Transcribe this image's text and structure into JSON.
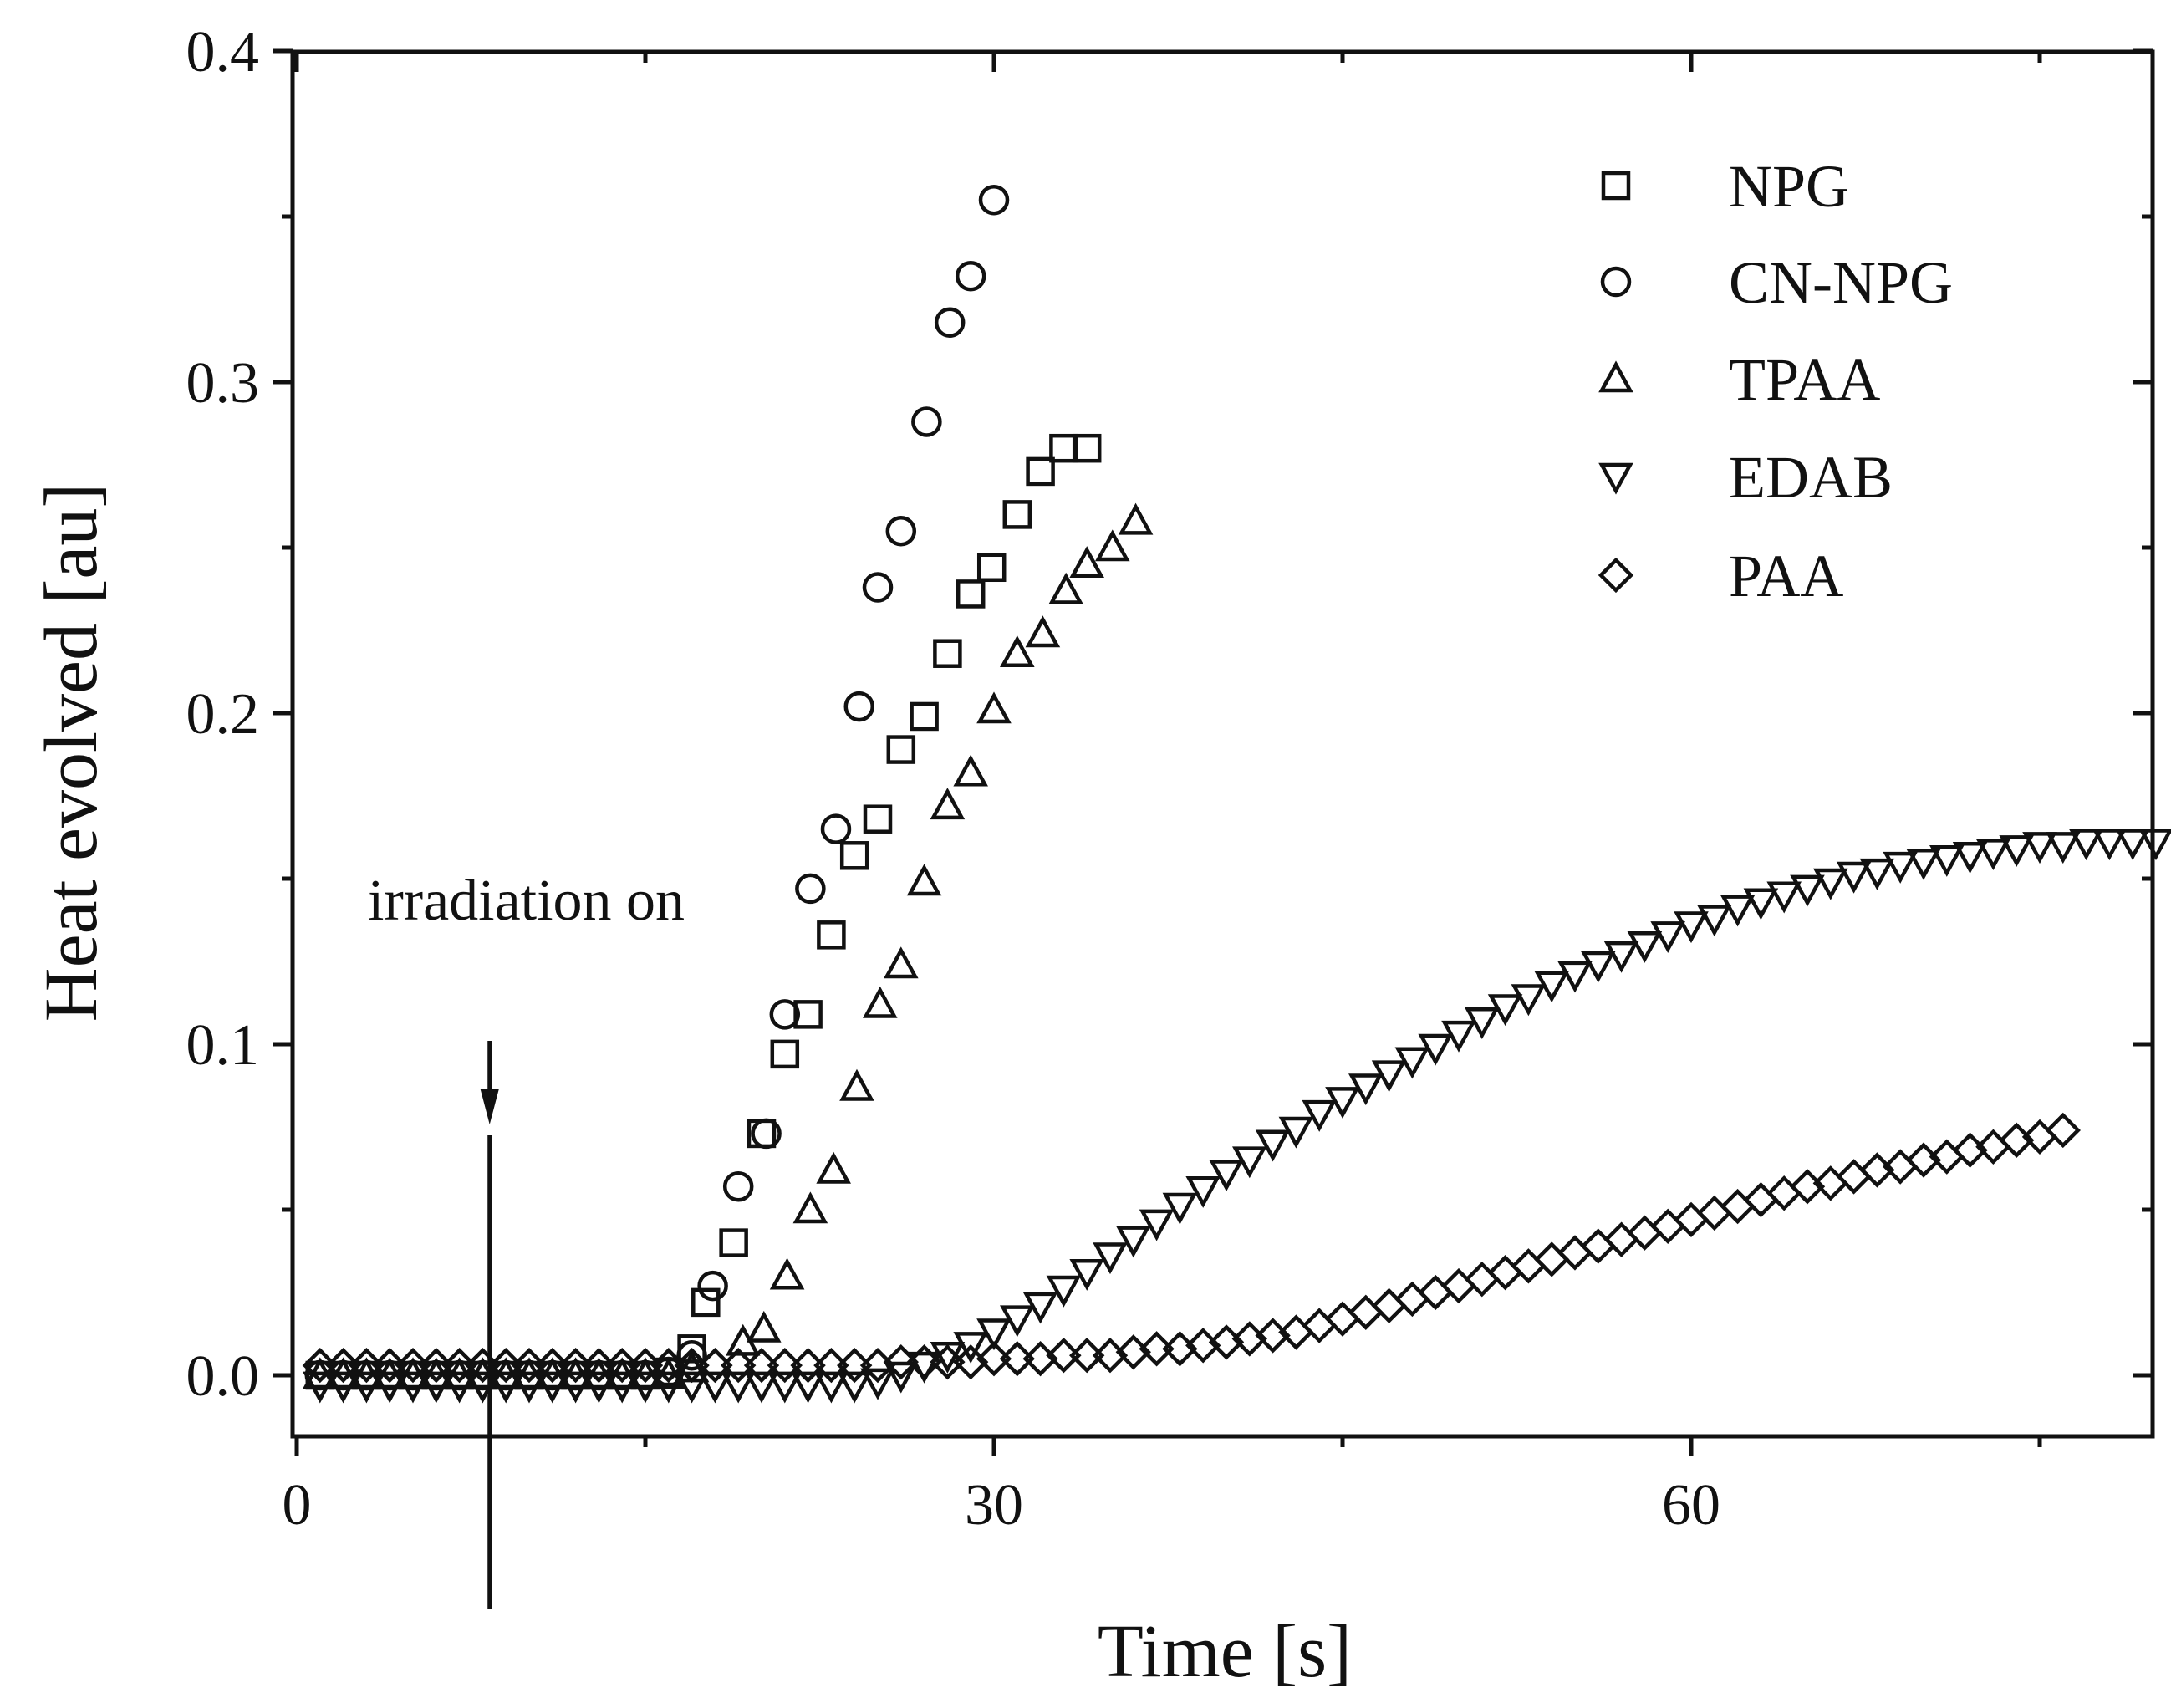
{
  "chart_data": {
    "type": "scatter",
    "title": "",
    "xlabel": "Time [s]",
    "ylabel": "Heat evolved [au]",
    "xlim": [
      0,
      80
    ],
    "ylim": [
      -0.018,
      0.4
    ],
    "xticks": [
      0,
      30,
      60
    ],
    "xtick_labels": [
      "0",
      "30",
      "60"
    ],
    "yticks": [
      0.0,
      0.1,
      0.2,
      0.3,
      0.4
    ],
    "ytick_labels": [
      "0.0",
      "0.1",
      "0.2",
      "0.3",
      "0.4"
    ],
    "grid": false,
    "legend_position": "top-right",
    "annotation": {
      "text": "irradiation on",
      "x": 8.3
    },
    "series": [
      {
        "name": "NPG",
        "marker": "square",
        "x": [
          1,
          2,
          3,
          4,
          5,
          6,
          7,
          8,
          9,
          10,
          11,
          12,
          13,
          14,
          15,
          16,
          17,
          17.6,
          18.8,
          20,
          21,
          22,
          23,
          24,
          25,
          26,
          27,
          28,
          29,
          29.9,
          31,
          32,
          33,
          34
        ],
        "y": [
          0,
          0,
          0,
          0,
          0,
          0,
          0,
          0,
          0,
          0,
          0,
          0,
          0,
          0,
          0,
          0.001,
          0.008,
          0.022,
          0.04,
          0.073,
          0.097,
          0.109,
          0.133,
          0.157,
          0.168,
          0.189,
          0.199,
          0.218,
          0.236,
          0.244,
          0.26,
          0.273,
          0.28,
          0.28
        ]
      },
      {
        "name": "CN-NPG",
        "marker": "circle",
        "x": [
          1,
          2,
          3,
          4,
          5,
          6,
          7,
          8,
          9,
          10,
          11,
          12,
          13,
          14,
          15,
          16,
          17,
          17.9,
          19.0,
          20.2,
          21.0,
          22.1,
          23.2,
          24.2,
          25.0,
          26.0,
          27.1,
          28.1,
          29.0,
          30.0
        ],
        "y": [
          0,
          0,
          0,
          0,
          0,
          0,
          0,
          0,
          0,
          0,
          0,
          0,
          0,
          0,
          0,
          0.001,
          0.006,
          0.027,
          0.057,
          0.073,
          0.109,
          0.147,
          0.165,
          0.202,
          0.238,
          0.255,
          0.288,
          0.318,
          0.332,
          0.355
        ]
      },
      {
        "name": "TPAA",
        "marker": "triangle-up",
        "x": [
          1,
          2,
          3,
          4,
          5,
          6,
          7,
          8,
          9,
          10,
          11,
          12,
          13,
          14,
          15,
          16,
          17,
          19.2,
          20.1,
          21.1,
          22.1,
          23.1,
          24.1,
          25.1,
          26.0,
          27.0,
          28.0,
          29.0,
          30.0,
          31.0,
          32.1,
          33.1,
          34.0,
          35.1,
          36.1
        ],
        "y": [
          0,
          0,
          0,
          0,
          0,
          0,
          0,
          0,
          0,
          0,
          0,
          0,
          0,
          0,
          0,
          0,
          0.002,
          0.01,
          0.014,
          0.03,
          0.05,
          0.062,
          0.087,
          0.112,
          0.124,
          0.149,
          0.172,
          0.182,
          0.201,
          0.218,
          0.224,
          0.237,
          0.245,
          0.25,
          0.258
        ]
      },
      {
        "name": "EDAB",
        "marker": "triangle-down",
        "x": [
          1,
          2,
          3,
          4,
          5,
          6,
          7,
          8,
          9,
          10,
          11,
          12,
          13,
          14,
          15,
          16,
          17,
          18,
          19,
          20,
          21,
          22,
          23,
          24,
          25,
          26,
          27,
          28,
          29,
          30,
          31,
          32,
          33,
          34,
          35,
          36,
          37,
          38,
          39,
          40,
          41,
          42,
          43,
          44,
          45,
          46,
          47,
          48,
          49,
          50,
          51,
          52,
          53,
          54,
          55,
          56,
          57,
          58,
          59,
          60,
          61,
          62,
          63,
          64,
          65,
          66,
          67,
          68,
          69,
          70,
          71,
          72,
          73,
          74,
          75,
          76,
          77,
          78,
          79,
          80
        ],
        "y": [
          -0.003,
          -0.003,
          -0.003,
          -0.003,
          -0.003,
          -0.003,
          -0.003,
          -0.003,
          -0.003,
          -0.003,
          -0.003,
          -0.003,
          -0.003,
          -0.003,
          -0.003,
          -0.003,
          -0.003,
          -0.003,
          -0.003,
          -0.003,
          -0.003,
          -0.003,
          -0.003,
          -0.003,
          -0.002,
          0.0,
          0.003,
          0.006,
          0.009,
          0.013,
          0.017,
          0.021,
          0.026,
          0.031,
          0.036,
          0.041,
          0.046,
          0.051,
          0.056,
          0.061,
          0.065,
          0.07,
          0.074,
          0.079,
          0.083,
          0.087,
          0.091,
          0.095,
          0.099,
          0.103,
          0.107,
          0.111,
          0.114,
          0.118,
          0.121,
          0.124,
          0.127,
          0.13,
          0.133,
          0.136,
          0.138,
          0.141,
          0.143,
          0.145,
          0.147,
          0.149,
          0.151,
          0.152,
          0.154,
          0.155,
          0.156,
          0.157,
          0.158,
          0.159,
          0.16,
          0.16,
          0.161,
          0.161,
          0.161,
          0.161
        ]
      },
      {
        "name": "PAA",
        "marker": "diamond",
        "x": [
          1,
          2,
          3,
          4,
          5,
          6,
          7,
          8,
          9,
          10,
          11,
          12,
          13,
          14,
          15,
          16,
          17,
          18,
          19,
          20,
          21,
          22,
          23,
          24,
          25,
          26,
          27,
          28,
          29,
          30,
          31,
          32,
          33,
          34,
          35,
          36,
          37,
          38,
          39,
          40,
          41,
          42,
          43,
          44,
          45,
          46,
          47,
          48,
          49,
          50,
          51,
          52,
          53,
          54,
          55,
          56,
          57,
          58,
          59,
          60,
          61,
          62,
          63,
          64,
          65,
          66,
          67,
          68,
          69,
          70,
          71,
          72,
          73,
          74,
          75,
          76
        ],
        "y": [
          0.003,
          0.003,
          0.003,
          0.003,
          0.003,
          0.003,
          0.003,
          0.003,
          0.003,
          0.003,
          0.003,
          0.003,
          0.003,
          0.003,
          0.003,
          0.003,
          0.003,
          0.003,
          0.003,
          0.003,
          0.003,
          0.003,
          0.003,
          0.003,
          0.003,
          0.004,
          0.004,
          0.004,
          0.004,
          0.005,
          0.005,
          0.005,
          0.006,
          0.006,
          0.006,
          0.007,
          0.008,
          0.008,
          0.009,
          0.01,
          0.011,
          0.012,
          0.013,
          0.015,
          0.017,
          0.019,
          0.021,
          0.023,
          0.025,
          0.027,
          0.029,
          0.031,
          0.033,
          0.035,
          0.037,
          0.039,
          0.041,
          0.043,
          0.045,
          0.047,
          0.049,
          0.051,
          0.053,
          0.055,
          0.057,
          0.058,
          0.06,
          0.062,
          0.063,
          0.065,
          0.066,
          0.068,
          0.069,
          0.071,
          0.072,
          0.074
        ]
      }
    ]
  }
}
